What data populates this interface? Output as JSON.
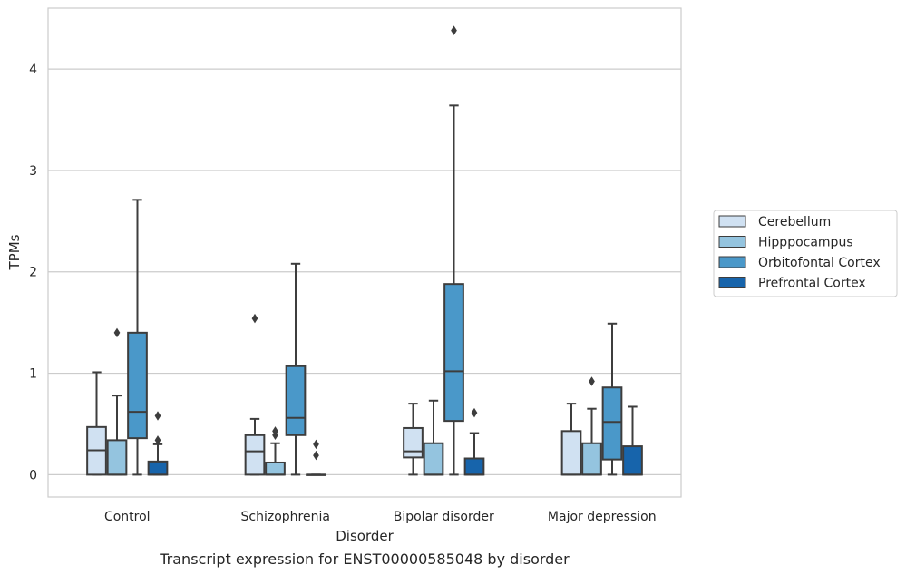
{
  "chart_data": {
    "type": "box",
    "title": "",
    "caption": "Transcript expression for ENST00000585048 by disorder",
    "xlabel": "Disorder",
    "ylabel": "TPMs",
    "ylim": [
      -0.22,
      4.6
    ],
    "yticks": [
      "0",
      "1",
      "2",
      "3",
      "4"
    ],
    "grid": "horizontal",
    "legend_position": "right",
    "categories": [
      "Control",
      "Schizophrenia",
      "Bipolar disorder",
      "Major depression"
    ],
    "series": [
      {
        "name": "Cerebellum",
        "color": "#d0e1f2",
        "boxes": [
          {
            "whisker_low": 0,
            "q1": 0,
            "median": 0.24,
            "q3": 0.47,
            "whisker_high": 1.01,
            "outliers": []
          },
          {
            "whisker_low": 0,
            "q1": 0,
            "median": 0.23,
            "q3": 0.39,
            "whisker_high": 0.55,
            "outliers": [
              1.54
            ]
          },
          {
            "whisker_low": 0,
            "q1": 0.17,
            "median": 0.23,
            "q3": 0.46,
            "whisker_high": 0.7,
            "outliers": []
          },
          {
            "whisker_low": 0,
            "q1": 0,
            "median": 0,
            "q3": 0.43,
            "whisker_high": 0.7,
            "outliers": []
          }
        ]
      },
      {
        "name": "Hipppocampus",
        "color": "#94c4df",
        "boxes": [
          {
            "whisker_low": 0,
            "q1": 0,
            "median": 0,
            "q3": 0.34,
            "whisker_high": 0.78,
            "outliers": [
              1.4
            ]
          },
          {
            "whisker_low": 0,
            "q1": 0,
            "median": 0,
            "q3": 0.12,
            "whisker_high": 0.31,
            "outliers": [
              0.39,
              0.43
            ]
          },
          {
            "whisker_low": 0,
            "q1": 0,
            "median": 0,
            "q3": 0.31,
            "whisker_high": 0.73,
            "outliers": []
          },
          {
            "whisker_low": 0,
            "q1": 0,
            "median": 0,
            "q3": 0.31,
            "whisker_high": 0.65,
            "outliers": [
              0.92
            ]
          }
        ]
      },
      {
        "name": "Orbitofontal Cortex",
        "color": "#4a98c9",
        "boxes": [
          {
            "whisker_low": 0,
            "q1": 0.36,
            "median": 0.62,
            "q3": 1.4,
            "whisker_high": 2.71,
            "outliers": []
          },
          {
            "whisker_low": 0,
            "q1": 0.39,
            "median": 0.56,
            "q3": 1.07,
            "whisker_high": 2.08,
            "outliers": []
          },
          {
            "whisker_low": 0,
            "q1": 0.53,
            "median": 1.02,
            "q3": 1.88,
            "whisker_high": 3.64,
            "outliers": [
              4.38
            ]
          },
          {
            "whisker_low": 0,
            "q1": 0.15,
            "median": 0.52,
            "q3": 0.86,
            "whisker_high": 1.49,
            "outliers": []
          }
        ]
      },
      {
        "name": "Prefrontal Cortex",
        "color": "#1764ab",
        "boxes": [
          {
            "whisker_low": 0,
            "q1": 0,
            "median": 0,
            "q3": 0.13,
            "whisker_high": 0.3,
            "outliers": [
              0.34,
              0.58
            ]
          },
          {
            "whisker_low": 0,
            "q1": 0,
            "median": 0,
            "q3": 0,
            "whisker_high": 0,
            "outliers": [
              0.19,
              0.3
            ]
          },
          {
            "whisker_low": 0,
            "q1": 0,
            "median": 0,
            "q3": 0.16,
            "whisker_high": 0.41,
            "outliers": [
              0.61
            ]
          },
          {
            "whisker_low": 0,
            "q1": 0,
            "median": 0,
            "q3": 0.28,
            "whisker_high": 0.67,
            "outliers": []
          }
        ]
      }
    ]
  }
}
